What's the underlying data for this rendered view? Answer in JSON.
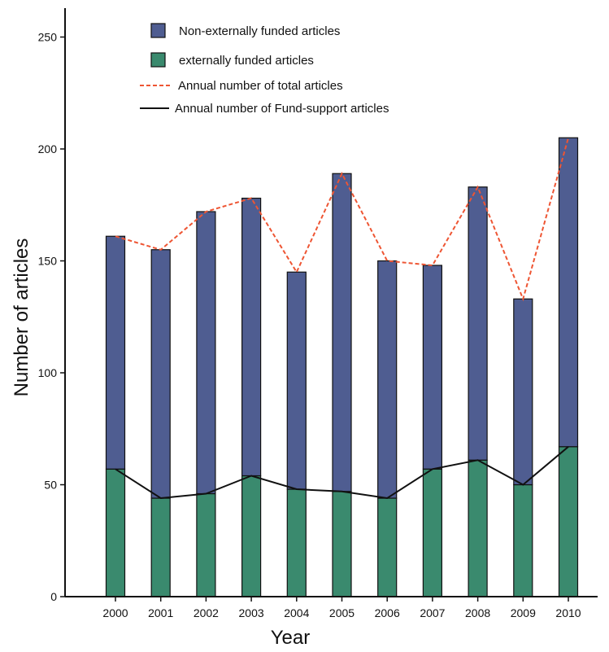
{
  "chart_data": {
    "type": "bar",
    "stacked": true,
    "categories": [
      "2000",
      "2001",
      "2002",
      "2003",
      "2004",
      "2005",
      "2006",
      "2007",
      "2008",
      "2009",
      "2010"
    ],
    "series": [
      {
        "name": "externally funded articles",
        "kind": "bar",
        "color": "#3a8a6e",
        "values": [
          57,
          44,
          46,
          54,
          48,
          47,
          44,
          57,
          61,
          50,
          67
        ]
      },
      {
        "name": "Non-externally funded articles",
        "kind": "bar",
        "color": "#4f5d91",
        "values": [
          104,
          111,
          126,
          124,
          97,
          142,
          106,
          91,
          122,
          83,
          138
        ]
      },
      {
        "name": "Annual number of total articles",
        "kind": "line",
        "style": "dashed",
        "color": "#ee5533",
        "values": [
          161,
          155,
          172,
          178,
          145,
          189,
          150,
          148,
          183,
          133,
          205
        ]
      },
      {
        "name": "Annual number of Fund-support articles",
        "kind": "line",
        "style": "solid",
        "color": "#111111",
        "values": [
          57,
          44,
          46,
          54,
          48,
          47,
          44,
          57,
          61,
          50,
          67
        ]
      }
    ],
    "xlabel": "Year",
    "ylabel": "Number of articles",
    "ylim": [
      0,
      260
    ],
    "yticks": [
      0,
      50,
      100,
      150,
      200,
      250
    ],
    "grid": false,
    "legend_position": "top"
  }
}
